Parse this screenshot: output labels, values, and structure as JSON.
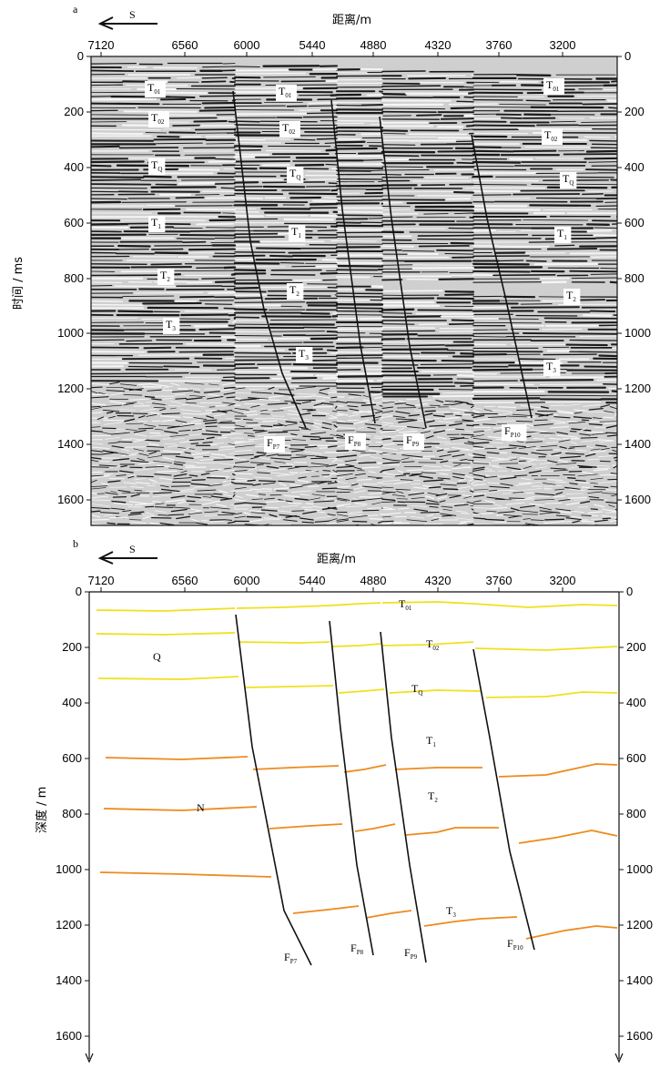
{
  "panel_a": {
    "letter": "a",
    "direction": "S",
    "xlabel": "距离/m",
    "ylabel": "时间 / ms",
    "x_ticks": [
      "7120",
      "6560",
      "6000",
      "5440",
      "4880",
      "4320",
      "3760",
      "3200"
    ],
    "y_ticks": [
      "0",
      "200",
      "400",
      "600",
      "800",
      "1000",
      "1200",
      "1400",
      "1600"
    ],
    "horizon_labels": [
      {
        "main": "T",
        "sub": "01"
      },
      {
        "main": "T",
        "sub": "02"
      },
      {
        "main": "T",
        "sub": "Q"
      },
      {
        "main": "T",
        "sub": "1"
      },
      {
        "main": "T",
        "sub": "2"
      },
      {
        "main": "T",
        "sub": "3"
      },
      {
        "main": "T",
        "sub": "01"
      },
      {
        "main": "T",
        "sub": "02"
      },
      {
        "main": "T",
        "sub": "Q"
      },
      {
        "main": "T",
        "sub": "1"
      },
      {
        "main": "T",
        "sub": "2"
      },
      {
        "main": "T",
        "sub": "3"
      },
      {
        "main": "T",
        "sub": "01"
      },
      {
        "main": "T",
        "sub": "02"
      },
      {
        "main": "T",
        "sub": "Q"
      },
      {
        "main": "T",
        "sub": "1"
      },
      {
        "main": "T",
        "sub": "2"
      },
      {
        "main": "T",
        "sub": "3"
      }
    ],
    "fault_labels": [
      {
        "main": "F",
        "sub": "P7"
      },
      {
        "main": "F",
        "sub": "P8"
      },
      {
        "main": "F",
        "sub": "P9"
      },
      {
        "main": "F",
        "sub": "P10"
      }
    ]
  },
  "panel_b": {
    "letter": "b",
    "direction": "S",
    "xlabel": "距离/m",
    "ylabel": "深度 / m",
    "x_ticks": [
      "7120",
      "6560",
      "6000",
      "5440",
      "4880",
      "4320",
      "3760",
      "3200"
    ],
    "y_ticks": [
      "0",
      "200",
      "400",
      "600",
      "800",
      "1000",
      "1200",
      "1400",
      "1600"
    ],
    "horizon_labels": [
      {
        "main": "T",
        "sub": "01"
      },
      {
        "main": "T",
        "sub": "02"
      },
      {
        "main": "T",
        "sub": "Q"
      },
      {
        "main": "T",
        "sub": "1"
      },
      {
        "main": "T",
        "sub": "2"
      },
      {
        "main": "T",
        "sub": "3"
      }
    ],
    "unit_labels": [
      "Q",
      "N"
    ],
    "fault_labels": [
      {
        "main": "F",
        "sub": "P7"
      },
      {
        "main": "F",
        "sub": "P8"
      },
      {
        "main": "F",
        "sub": "P9"
      },
      {
        "main": "F",
        "sub": "P10"
      }
    ]
  },
  "colors": {
    "shallow_horizon": "#f0e01e",
    "deep_horizon": "#ee8a1c",
    "fault": "#111111",
    "seismic_bg": "#cfcfcf"
  }
}
